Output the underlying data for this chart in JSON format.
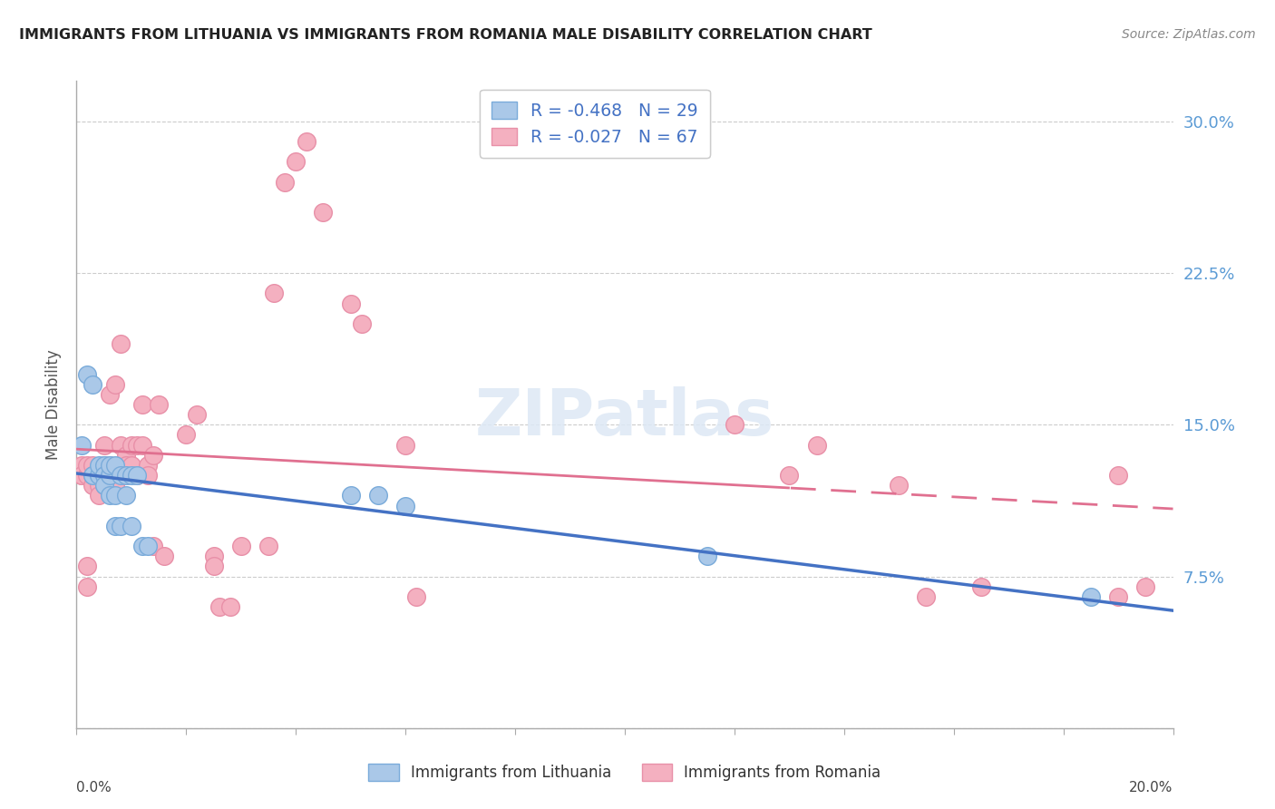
{
  "title": "IMMIGRANTS FROM LITHUANIA VS IMMIGRANTS FROM ROMANIA MALE DISABILITY CORRELATION CHART",
  "source": "Source: ZipAtlas.com",
  "ylabel": "Male Disability",
  "yticks": [
    0.0,
    0.075,
    0.15,
    0.225,
    0.3
  ],
  "ytick_labels": [
    "",
    "7.5%",
    "15.0%",
    "22.5%",
    "30.0%"
  ],
  "xlim": [
    0.0,
    0.2
  ],
  "ylim": [
    0.0,
    0.32
  ],
  "lithuania_color": "#aac8e8",
  "romania_color": "#f4b0c0",
  "lithuania_edge": "#7aabda",
  "romania_edge": "#e890a8",
  "trend_blue": "#4472c4",
  "trend_pink": "#e07090",
  "legend_R_lith": "R = ",
  "legend_R_lith_val": "-0.468",
  "legend_N_lith": "  N = ",
  "legend_N_lith_val": "29",
  "legend_R_rom": "R = ",
  "legend_R_rom_val": "-0.027",
  "legend_N_rom": "  N = ",
  "legend_N_rom_val": "67",
  "lithuania_x": [
    0.001,
    0.002,
    0.003,
    0.003,
    0.004,
    0.004,
    0.005,
    0.005,
    0.005,
    0.006,
    0.006,
    0.006,
    0.007,
    0.007,
    0.007,
    0.008,
    0.008,
    0.009,
    0.009,
    0.01,
    0.01,
    0.011,
    0.012,
    0.013,
    0.05,
    0.055,
    0.06,
    0.115,
    0.185
  ],
  "lithuania_y": [
    0.14,
    0.175,
    0.17,
    0.125,
    0.125,
    0.13,
    0.13,
    0.125,
    0.12,
    0.125,
    0.13,
    0.115,
    0.13,
    0.115,
    0.1,
    0.125,
    0.1,
    0.125,
    0.115,
    0.125,
    0.1,
    0.125,
    0.09,
    0.09,
    0.115,
    0.115,
    0.11,
    0.085,
    0.065
  ],
  "romania_x": [
    0.001,
    0.001,
    0.001,
    0.002,
    0.002,
    0.002,
    0.002,
    0.003,
    0.003,
    0.003,
    0.004,
    0.004,
    0.004,
    0.004,
    0.005,
    0.005,
    0.005,
    0.005,
    0.006,
    0.006,
    0.006,
    0.007,
    0.007,
    0.007,
    0.008,
    0.008,
    0.009,
    0.009,
    0.009,
    0.01,
    0.01,
    0.011,
    0.011,
    0.012,
    0.012,
    0.013,
    0.013,
    0.014,
    0.014,
    0.015,
    0.016,
    0.02,
    0.022,
    0.025,
    0.025,
    0.026,
    0.028,
    0.03,
    0.035,
    0.036,
    0.038,
    0.04,
    0.042,
    0.045,
    0.05,
    0.052,
    0.06,
    0.062,
    0.12,
    0.13,
    0.135,
    0.15,
    0.155,
    0.165,
    0.19,
    0.19,
    0.195
  ],
  "romania_y": [
    0.125,
    0.13,
    0.125,
    0.07,
    0.08,
    0.125,
    0.13,
    0.13,
    0.12,
    0.125,
    0.125,
    0.12,
    0.115,
    0.125,
    0.14,
    0.13,
    0.125,
    0.12,
    0.165,
    0.125,
    0.13,
    0.17,
    0.125,
    0.12,
    0.19,
    0.14,
    0.125,
    0.135,
    0.13,
    0.13,
    0.14,
    0.14,
    0.125,
    0.14,
    0.16,
    0.13,
    0.125,
    0.135,
    0.09,
    0.16,
    0.085,
    0.145,
    0.155,
    0.085,
    0.08,
    0.06,
    0.06,
    0.09,
    0.09,
    0.215,
    0.27,
    0.28,
    0.29,
    0.255,
    0.21,
    0.2,
    0.14,
    0.065,
    0.15,
    0.125,
    0.14,
    0.12,
    0.065,
    0.07,
    0.065,
    0.125,
    0.07
  ],
  "background_color": "#ffffff",
  "grid_color": "#cccccc",
  "right_tick_color": "#5b9bd5",
  "trend_split_x": 0.13
}
